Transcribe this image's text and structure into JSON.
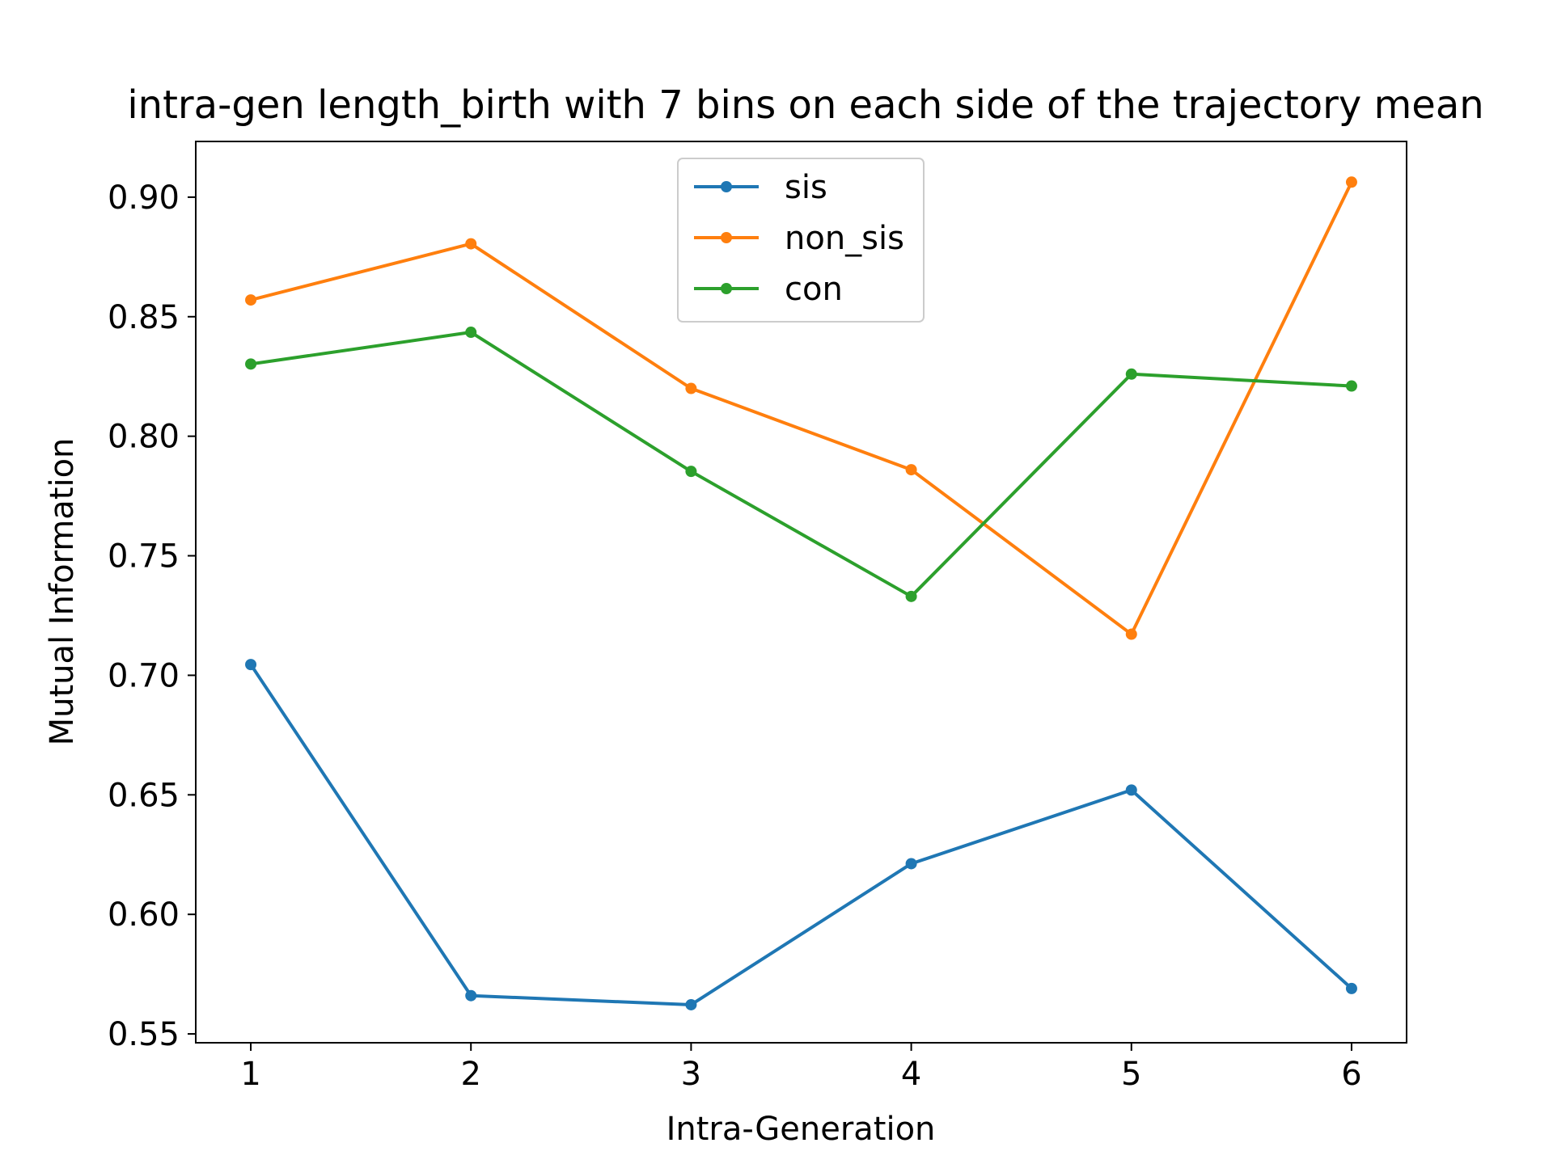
{
  "chart_data": {
    "type": "line",
    "title": "intra-gen length_birth with 7 bins on each side of the trajectory mean",
    "xlabel": "Intra-Generation",
    "ylabel": "Mutual Information",
    "x": [
      1,
      2,
      3,
      4,
      5,
      6
    ],
    "xticks": [
      1,
      2,
      3,
      4,
      5,
      6
    ],
    "xlim": [
      0.75,
      6.25
    ],
    "yticks": [
      0.55,
      0.6,
      0.65,
      0.7,
      0.75,
      0.8,
      0.85,
      0.9
    ],
    "ylim": [
      0.5463,
      0.9233
    ],
    "grid": false,
    "legend_position": "upper center",
    "series": [
      {
        "name": "sis",
        "color": "#1f77b4",
        "values": [
          0.7045,
          0.566,
          0.5622,
          0.6212,
          0.652,
          0.569
        ]
      },
      {
        "name": "non_sis",
        "color": "#ff7f0e",
        "values": [
          0.857,
          0.8805,
          0.82,
          0.786,
          0.7172,
          0.9063
        ]
      },
      {
        "name": "con",
        "color": "#2ca02c",
        "values": [
          0.8302,
          0.8435,
          0.7853,
          0.733,
          0.826,
          0.821
        ]
      }
    ]
  }
}
